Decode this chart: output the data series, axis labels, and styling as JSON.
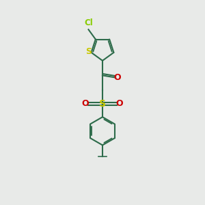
{
  "bg_color": "#e8eae8",
  "bond_color": "#2d6b4a",
  "s_color": "#c8c800",
  "cl_color": "#88cc00",
  "o_color": "#cc0000",
  "lw": 1.5,
  "fig_width": 3.0,
  "fig_height": 3.0,
  "dpi": 100,
  "xlim": [
    0,
    10
  ],
  "ylim": [
    0,
    15
  ]
}
